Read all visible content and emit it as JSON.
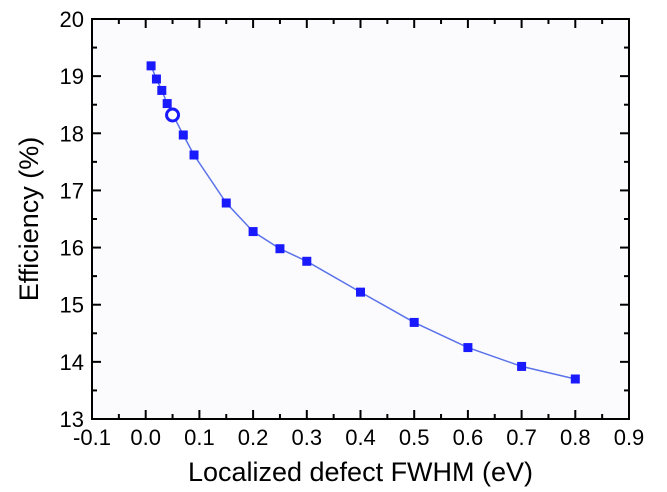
{
  "chart_data": {
    "type": "scatter",
    "title": "",
    "xlabel": "Localized defect FWHM (eV)",
    "ylabel": "Efficiency (%)",
    "xlim": [
      -0.1,
      0.9
    ],
    "ylim": [
      13,
      20
    ],
    "xticks": [
      -0.1,
      0.0,
      0.1,
      0.2,
      0.3,
      0.4,
      0.5,
      0.6,
      0.7,
      0.8,
      0.9
    ],
    "xtick_labels": [
      "-0.1",
      "0.0",
      "0.1",
      "0.2",
      "0.3",
      "0.4",
      "0.5",
      "0.6",
      "0.7",
      "0.8",
      "0.9"
    ],
    "yticks": [
      13,
      14,
      15,
      16,
      17,
      18,
      19,
      20
    ],
    "ytick_labels": [
      "13",
      "14",
      "15",
      "16",
      "17",
      "18",
      "19",
      "20"
    ],
    "grid": false,
    "series": [
      {
        "marker": "square",
        "color": "#1a1aff",
        "line_color": "#5a72ea",
        "x": [
          0.01,
          0.02,
          0.03,
          0.04,
          0.07,
          0.09,
          0.15,
          0.2,
          0.25,
          0.3,
          0.4,
          0.5,
          0.6,
          0.7,
          0.8
        ],
        "y": [
          19.18,
          18.95,
          18.75,
          18.52,
          17.97,
          17.62,
          16.78,
          16.28,
          15.98,
          15.76,
          15.22,
          14.69,
          14.25,
          13.92,
          13.7
        ]
      }
    ],
    "highlight": {
      "marker": "open-circle",
      "color": "#1a1aff",
      "x": 0.05,
      "y": 18.32
    }
  }
}
